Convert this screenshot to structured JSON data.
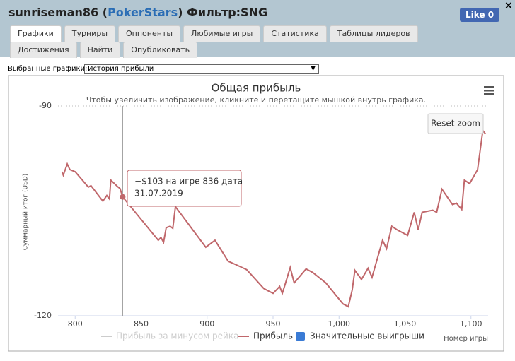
{
  "header": {
    "title_user": "sunriseman86 (",
    "title_site": "PokerStars",
    "title_filter": ") Фильтр:SNG",
    "like": "Like 0",
    "close": "×"
  },
  "tabs": [
    "Графики",
    "Турниры",
    "Оппоненты",
    "Любимые игры",
    "Статистика",
    "Таблицы лидеров",
    "Достижения",
    "Найти",
    "Опубликовать"
  ],
  "selector": {
    "label": "Выбранные графики:",
    "value": "История прибыли",
    "arrow": "▼"
  },
  "chart_data": {
    "type": "line",
    "title": "Общая прибыль",
    "subtitle": "Чтобы увеличить изображение, кликните и перетащите мышкой внутрь графика.",
    "y_label": "Суммарный итог (USD)",
    "x_label": "Номер игры",
    "reset_zoom": "Reset zoom",
    "x": [
      790,
      791,
      794,
      796,
      800,
      810,
      812,
      821,
      824,
      826,
      827,
      832,
      834,
      836,
      863,
      865,
      867,
      869,
      872,
      874,
      876,
      899,
      906,
      916,
      922,
      930,
      943,
      950,
      955,
      957,
      959,
      963,
      966,
      975,
      980,
      990,
      1003,
      1007,
      1010,
      1012,
      1017,
      1022,
      1025,
      1033,
      1036,
      1040,
      1044,
      1052,
      1057,
      1060,
      1063,
      1071,
      1074,
      1078,
      1086,
      1089,
      1093,
      1095,
      1099,
      1105,
      1109,
      1111
    ],
    "series": [
      {
        "name": "Прибыль",
        "color": "#c0676b",
        "values": [
          -99.4,
          -99.9,
          -98.3,
          -99.1,
          -99.4,
          -101.6,
          -101.4,
          -103.6,
          -102.8,
          -103.3,
          -100.6,
          -101.5,
          -101.8,
          -103,
          -109.2,
          -108.8,
          -109.5,
          -107.4,
          -107.2,
          -107.5,
          -104.4,
          -110.2,
          -109.2,
          -112.2,
          -112.7,
          -113.4,
          -116.1,
          -116.8,
          -115.8,
          -116.8,
          -115.6,
          -113.1,
          -115.3,
          -113.3,
          -113.8,
          -115.3,
          -118.3,
          -118.7,
          -116.3,
          -113.5,
          -114.8,
          -113.2,
          -114.5,
          -109.2,
          -110.4,
          -107.2,
          -107.7,
          -108.5,
          -105.2,
          -107.7,
          -105.2,
          -104.9,
          -105.2,
          -101.9,
          -104.1,
          -103.9,
          -104.8,
          -100.6,
          -101.1,
          -99.1,
          -93.5,
          -94
        ]
      }
    ],
    "legend_items": [
      {
        "name": "Прибыль за минусом рейка",
        "color": "#cccccc"
      },
      {
        "name": "Значительные выигрыши",
        "color": "#3a7bd5"
      }
    ],
    "xlim": [
      787,
      1113
    ],
    "ylim": [
      -120,
      -90
    ],
    "xticks": [
      800,
      850,
      900,
      950,
      {
        "value": 1000,
        "label": "1,000"
      },
      {
        "value": 1050,
        "label": "1,050"
      },
      {
        "value": 1100,
        "label": "1,100"
      }
    ],
    "yticks": [
      -120,
      -90
    ],
    "tooltip": {
      "x": 836,
      "y": -103,
      "line1": "−$103 на игре 836 дата",
      "line2": "31.07.2019"
    }
  }
}
